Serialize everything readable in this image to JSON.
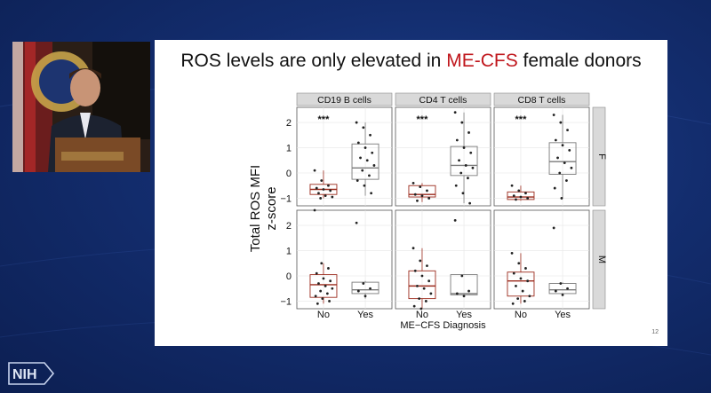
{
  "slide": {
    "title_before": "ROS levels are only elevated in ",
    "title_highlight": "ME-CFS",
    "title_after": " female donors",
    "page_number": "12"
  },
  "branding": {
    "nih_logo_text": "NIH"
  },
  "colors": {
    "no_box": "#9b2a1c",
    "yes_box": "#7a7a7a",
    "highlight": "#c0171d",
    "background": "#132d6e"
  },
  "chart_data": {
    "type": "box",
    "ylabel": "Total ROS MFI\nz-score",
    "xlabel": "ME−CFS Diagnosis",
    "categories": [
      "No",
      "Yes"
    ],
    "facet_columns": [
      "CD19 B cells",
      "CD4 T cells",
      "CD8 T cells"
    ],
    "facet_rows": [
      "F",
      "M"
    ],
    "yticks": [
      -1,
      0,
      1,
      2
    ],
    "ylim_top": [
      -1.3,
      2.6
    ],
    "ylim_bottom": [
      -1.3,
      2.6
    ],
    "significance": "***",
    "panels": [
      {
        "row": "F",
        "col": "CD19 B cells",
        "sig": "***",
        "no": {
          "q1": -0.85,
          "median": -0.65,
          "q3": -0.45,
          "min": -1.0,
          "max": 0.1,
          "points": [
            0.1,
            -0.3,
            -0.5,
            -0.6,
            -0.65,
            -0.7,
            -0.8,
            -0.9,
            -0.95,
            -1.0
          ]
        },
        "yes": {
          "q1": -0.25,
          "median": 0.2,
          "q3": 1.15,
          "min": -0.9,
          "max": 2.0,
          "points": [
            2.0,
            1.8,
            1.5,
            1.2,
            1.0,
            0.8,
            0.6,
            0.5,
            0.3,
            0.1,
            -0.1,
            -0.3,
            -0.5,
            -0.8
          ]
        }
      },
      {
        "row": "F",
        "col": "CD4 T cells",
        "sig": "***",
        "no": {
          "q1": -0.95,
          "median": -0.85,
          "q3": -0.5,
          "min": -1.15,
          "max": -0.4,
          "points": [
            -0.4,
            -0.55,
            -0.7,
            -0.85,
            -0.9,
            -1.0,
            -1.1
          ]
        },
        "yes": {
          "q1": -0.1,
          "median": 0.3,
          "q3": 1.05,
          "min": -1.2,
          "max": 2.4,
          "points": [
            2.4,
            2.0,
            1.6,
            1.3,
            1.0,
            0.8,
            0.5,
            0.3,
            0.2,
            0.0,
            -0.2,
            -0.5,
            -0.8,
            -1.2
          ]
        }
      },
      {
        "row": "F",
        "col": "CD8 T cells",
        "sig": "***",
        "no": {
          "q1": -1.05,
          "median": -0.95,
          "q3": -0.75,
          "min": -1.1,
          "max": -0.5,
          "points": [
            -0.5,
            -0.7,
            -0.8,
            -0.9,
            -0.95,
            -1.0,
            -1.05
          ]
        },
        "yes": {
          "q1": -0.05,
          "median": 0.45,
          "q3": 1.2,
          "min": -1.0,
          "max": 2.3,
          "points": [
            2.3,
            2.0,
            1.7,
            1.3,
            1.1,
            0.9,
            0.6,
            0.4,
            0.2,
            0.0,
            -0.3,
            -0.6,
            -1.0
          ]
        }
      },
      {
        "row": "M",
        "col": "CD19 B cells",
        "sig": "",
        "no": {
          "q1": -0.85,
          "median": -0.35,
          "q3": 0.05,
          "min": -1.1,
          "max": 0.5,
          "points": [
            2.6,
            0.5,
            0.3,
            0.1,
            -0.1,
            -0.2,
            -0.3,
            -0.4,
            -0.5,
            -0.6,
            -0.7,
            -0.8,
            -0.9,
            -1.0,
            -1.1
          ]
        },
        "yes": {
          "q1": -0.7,
          "median": -0.55,
          "q3": -0.25,
          "min": -0.9,
          "max": -0.2,
          "points": [
            2.1,
            -0.3,
            -0.5,
            -0.6,
            -0.8
          ]
        }
      },
      {
        "row": "M",
        "col": "CD4 T cells",
        "sig": "",
        "no": {
          "q1": -0.9,
          "median": -0.4,
          "q3": 0.2,
          "min": -1.3,
          "max": 1.1,
          "points": [
            1.1,
            0.6,
            0.4,
            0.2,
            0.0,
            -0.2,
            -0.4,
            -0.5,
            -0.7,
            -0.9,
            -1.0,
            -1.2,
            -1.3
          ]
        },
        "yes": {
          "q1": -0.75,
          "median": -0.7,
          "q3": 0.05,
          "min": -0.8,
          "max": 0.05,
          "points": [
            2.2,
            0.0,
            -0.6,
            -0.7,
            -0.8
          ]
        }
      },
      {
        "row": "M",
        "col": "CD8 T cells",
        "sig": "",
        "no": {
          "q1": -0.8,
          "median": -0.2,
          "q3": 0.15,
          "min": -1.1,
          "max": 0.9,
          "points": [
            0.9,
            0.5,
            0.3,
            0.1,
            -0.1,
            -0.2,
            -0.4,
            -0.6,
            -0.8,
            -0.9,
            -1.0,
            -1.1
          ]
        },
        "yes": {
          "q1": -0.7,
          "median": -0.55,
          "q3": -0.3,
          "min": -0.8,
          "max": -0.25,
          "points": [
            1.9,
            -0.3,
            -0.5,
            -0.6,
            -0.75
          ]
        }
      }
    ]
  }
}
